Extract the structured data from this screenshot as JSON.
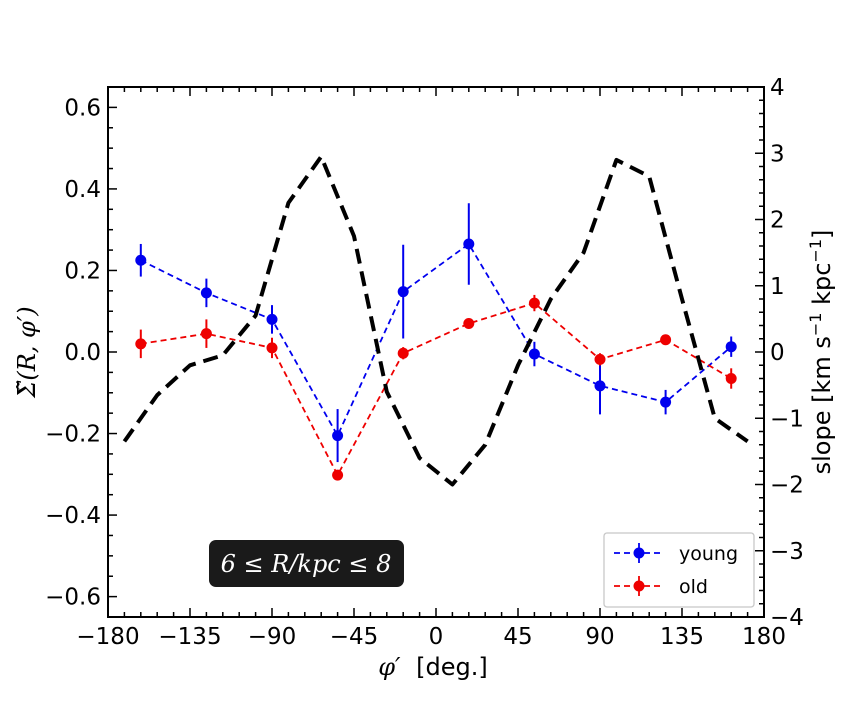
{
  "chart_data": {
    "type": "line",
    "xlabel_prefix": "φ′",
    "xlabel_suffix": "[deg.]",
    "xlim": [
      -180,
      180
    ],
    "xticks": [
      -180,
      -135,
      -90,
      -45,
      0,
      45,
      90,
      135,
      180
    ],
    "xtick_labels": [
      "−180",
      "−135",
      "−90",
      "−45",
      "0",
      "45",
      "90",
      "135",
      "180"
    ],
    "ylabel_left": "Σ̃(R, φ′)",
    "ylim_left": [
      -0.65,
      0.65
    ],
    "yticks_left": [
      -0.6,
      -0.4,
      -0.2,
      0.0,
      0.2,
      0.4,
      0.6
    ],
    "ytick_labels_left": [
      "−0.6",
      "−0.4",
      "−0.2",
      "0.0",
      "0.2",
      "0.4",
      "0.6"
    ],
    "ylabel_right_main": "slope [km s",
    "ylabel_right_sup1": "−1",
    "ylabel_right_mid": " kpc",
    "ylabel_right_sup2": "−1",
    "ylabel_right_end": "]",
    "ylim_right": [
      -4,
      4
    ],
    "yticks_right": [
      -4,
      -3,
      -2,
      -1,
      0,
      1,
      2,
      3,
      4
    ],
    "ytick_labels_right": [
      "−4",
      "−3",
      "−2",
      "−1",
      "0",
      "1",
      "2",
      "3",
      "4"
    ],
    "annotation": "6 ≤ R/kpc ≤ 8",
    "legend_position": "lower-right",
    "series": [
      {
        "name": "young",
        "color": "#0000ee",
        "axis": "left",
        "style": "dashed-markers",
        "x": [
          -162,
          -126,
          -90,
          -54,
          -18,
          18,
          54,
          90,
          126,
          162
        ],
        "y": [
          0.225,
          0.145,
          0.08,
          -0.205,
          0.148,
          0.265,
          -0.005,
          -0.083,
          -0.123,
          0.013
        ],
        "yerr": [
          0.04,
          0.035,
          0.035,
          0.065,
          0.115,
          0.1,
          0.03,
          0.07,
          0.03,
          0.025
        ]
      },
      {
        "name": "old",
        "color": "#ee0000",
        "axis": "left",
        "style": "dashed-markers",
        "x": [
          -162,
          -126,
          -90,
          -54,
          -18,
          18,
          54,
          90,
          126,
          162
        ],
        "y": [
          0.02,
          0.045,
          0.01,
          -0.302,
          -0.003,
          0.07,
          0.12,
          -0.018,
          0.03,
          -0.065
        ],
        "yerr": [
          0.035,
          0.035,
          0.025,
          0.01,
          0.015,
          0.01,
          0.02,
          0.015,
          0.01,
          0.025
        ]
      },
      {
        "name": "slope",
        "color": "#000000",
        "axis": "right",
        "style": "thick-dashed",
        "x": [
          -171,
          -153,
          -135,
          -117,
          -99,
          -81,
          -63,
          -45,
          -27,
          -9,
          9,
          27,
          45,
          63,
          81,
          99,
          117,
          135,
          153,
          171
        ],
        "y": [
          -1.35,
          -0.65,
          -0.2,
          -0.05,
          0.55,
          2.25,
          2.95,
          1.75,
          -0.6,
          -1.6,
          -2.0,
          -1.4,
          -0.2,
          0.8,
          1.5,
          2.9,
          2.65,
          0.8,
          -1.0,
          -1.35
        ]
      }
    ]
  }
}
